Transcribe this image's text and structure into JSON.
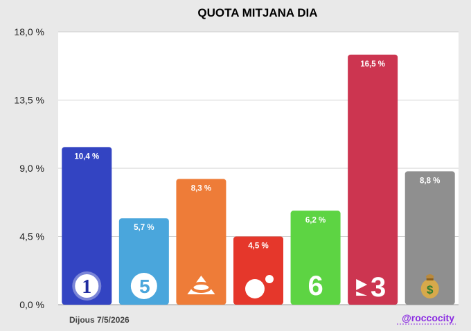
{
  "chart_data": {
    "type": "bar",
    "title": "QUOTA MITJANA DIA",
    "xlabel": "",
    "ylabel": "",
    "ylim": [
      0,
      18
    ],
    "y_ticks": [
      "0,0 %",
      "4,5 %",
      "9,0 %",
      "13,5 %",
      "18,0 %"
    ],
    "y_tick_values": [
      0,
      4.5,
      9,
      13.5,
      18
    ],
    "grid": true,
    "categories": [
      "La 1",
      "Telecinco",
      "Antena 3",
      "Cuatro",
      "laSexta",
      "TV3",
      "Altres"
    ],
    "values": [
      10.4,
      5.7,
      8.3,
      4.5,
      6.2,
      16.5,
      8.8
    ],
    "value_labels": [
      "10,4 %",
      "5,7 %",
      "8,3 %",
      "4,5 %",
      "6,2 %",
      "16,5 %",
      "8,8 %"
    ],
    "colors": [
      "#3344c2",
      "#4aa6dc",
      "#ee7c38",
      "#e5372b",
      "#5dd443",
      "#cc3550",
      "#8f8f8f"
    ],
    "icons": [
      "la1-logo-icon",
      "telecinco-logo-icon",
      "antena3-logo-icon",
      "cuatro-logo-icon",
      "lasexta-logo-icon",
      "tv3-logo-icon",
      "money-bag-icon"
    ]
  },
  "footer": {
    "date": "Dijous 7/5/2026",
    "handle": "@roccocity"
  }
}
